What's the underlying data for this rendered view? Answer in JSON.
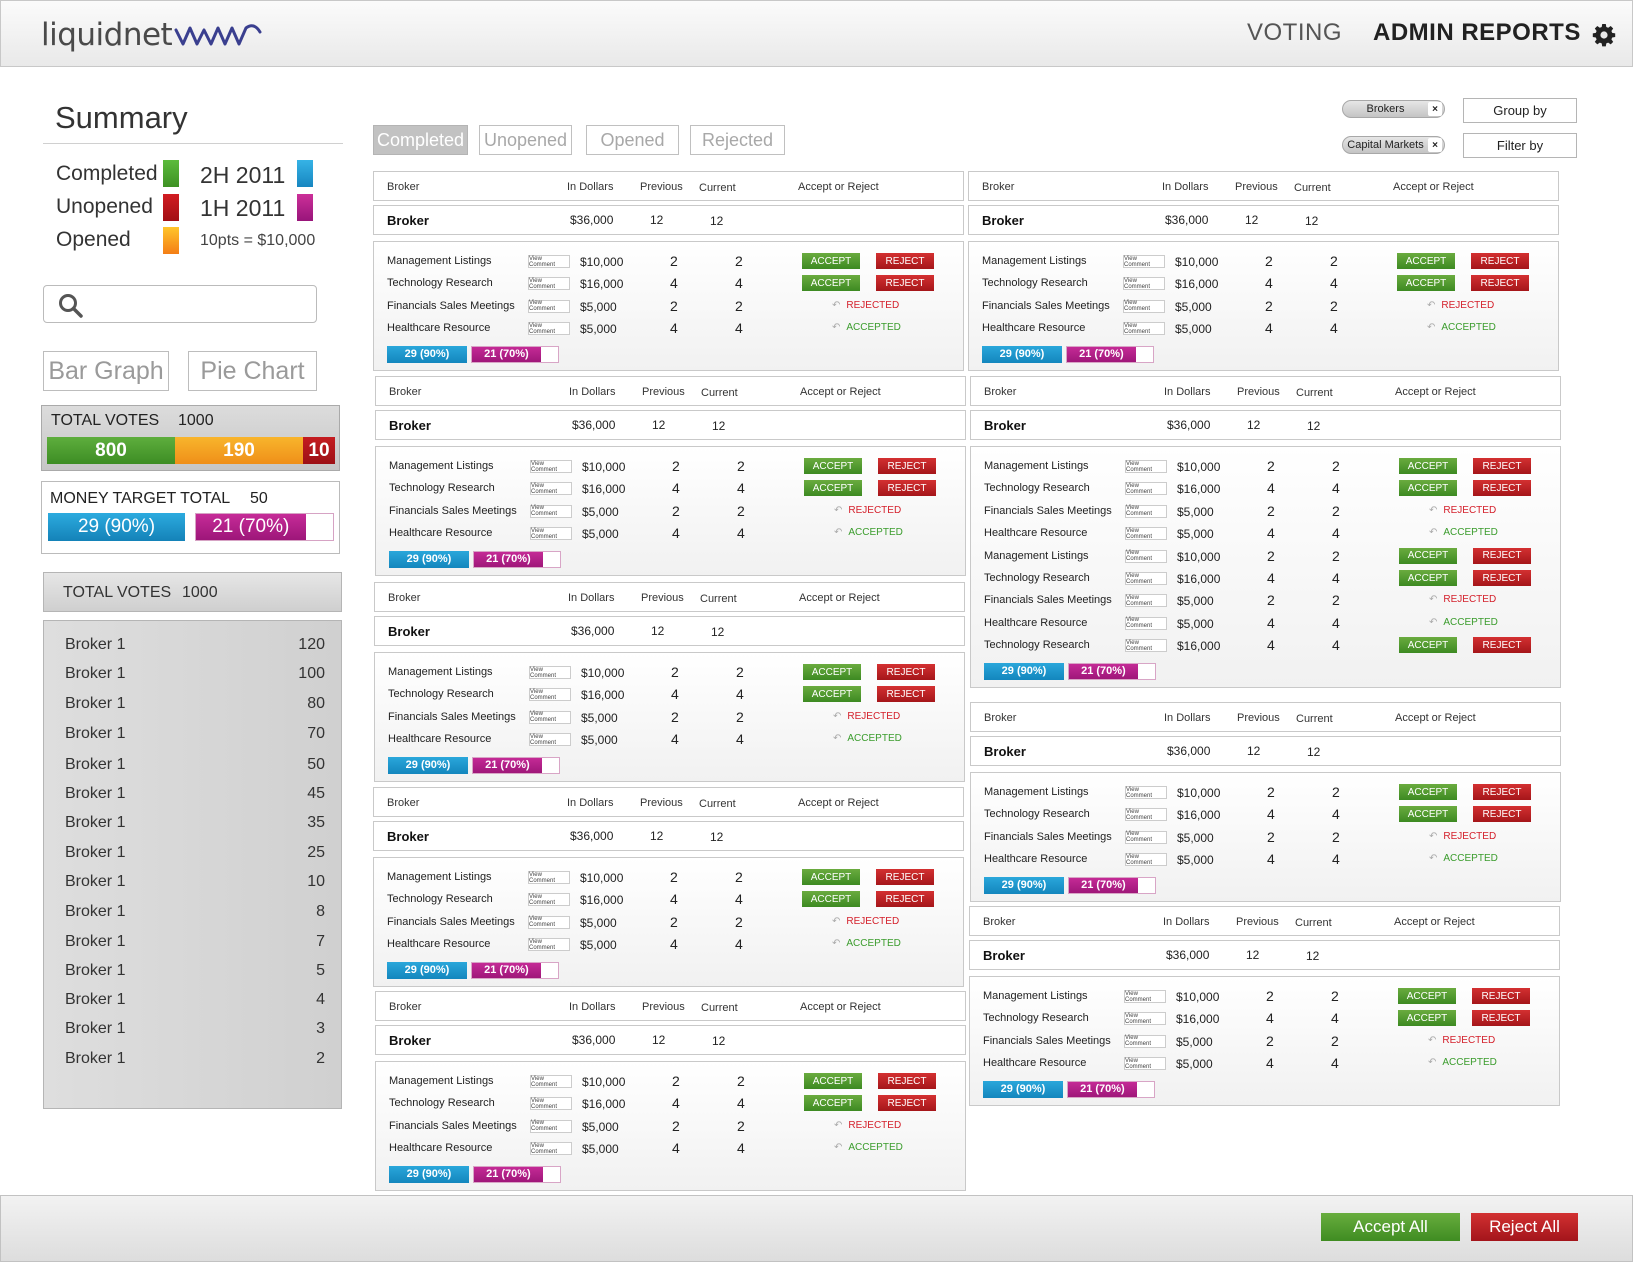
{
  "header": {
    "logo_text": "liquidnet",
    "nav": {
      "voting": "VOTING",
      "admin_reports": "ADMIN REPORTS"
    }
  },
  "summary": {
    "title": "Summary",
    "legend": [
      {
        "label": "Completed",
        "color": "#4caf32"
      },
      {
        "label": "Unopened",
        "color": "#c0161b"
      },
      {
        "label": "Opened",
        "color": "#f5a020"
      }
    ],
    "periods": [
      {
        "label": "2H 2011",
        "color": "#1f9fd8"
      },
      {
        "label": "1H 2011",
        "color": "#b41a86"
      }
    ],
    "points_note": "10pts = $10,000",
    "search": {
      "placeholder": "",
      "value": ""
    },
    "view_buttons": {
      "bar": "Bar Graph",
      "pie": "Pie Chart"
    }
  },
  "total_votes": {
    "label": "TOTAL VOTES",
    "value": "1000",
    "segments": [
      {
        "value": "800",
        "color": "#4a9e33"
      },
      {
        "value": "190",
        "color": "#f4a024"
      },
      {
        "value": "10",
        "color": "#b3151a"
      }
    ]
  },
  "money_target": {
    "label": "MONEY TARGET TOTAL",
    "value": "50",
    "bars": [
      {
        "text": "29 (90%)",
        "color": "#1c93cd"
      },
      {
        "text": "21 (70%)",
        "color": "#b41a86",
        "fill": 0.8
      }
    ]
  },
  "broker_totals": {
    "label": "TOTAL VOTES",
    "value": "1000",
    "rows": [
      {
        "name": "Broker 1",
        "value": "120"
      },
      {
        "name": "Broker 1",
        "value": "100"
      },
      {
        "name": "Broker 1",
        "value": "80"
      },
      {
        "name": "Broker 1",
        "value": "70"
      },
      {
        "name": "Broker 1",
        "value": "50"
      },
      {
        "name": "Broker 1",
        "value": "45"
      },
      {
        "name": "Broker 1",
        "value": "35"
      },
      {
        "name": "Broker 1",
        "value": "25"
      },
      {
        "name": "Broker 1",
        "value": "10"
      },
      {
        "name": "Broker 1",
        "value": "8"
      },
      {
        "name": "Broker 1",
        "value": "7"
      },
      {
        "name": "Broker 1",
        "value": "5"
      },
      {
        "name": "Broker 1",
        "value": "4"
      },
      {
        "name": "Broker 1",
        "value": "3"
      },
      {
        "name": "Broker 1",
        "value": "2"
      }
    ]
  },
  "tabs": [
    {
      "label": "Completed",
      "active": true
    },
    {
      "label": "Unopened",
      "active": false
    },
    {
      "label": "Opened",
      "active": false
    },
    {
      "label": "Rejected",
      "active": false
    }
  ],
  "filters": {
    "chips": [
      "Brokers",
      "Capital Markets"
    ],
    "chip_remove": "×",
    "group_by": "Group by",
    "filter_by": "Filter by"
  },
  "card_labels": {
    "broker": "Broker",
    "in_dollars": "In Dollars",
    "previous": "Previous",
    "current": "Current",
    "accept_or_reject": "Accept or Reject",
    "view_comment": "View Comment",
    "accept": "ACCEPT",
    "reject": "REJECT",
    "rejected": "REJECTED",
    "accepted": "ACCEPTED",
    "undo": "↶",
    "bar1": "29 (90%)",
    "bar2": "21 (70%)"
  },
  "cards": [
    {
      "broker": "Broker",
      "dollars": "$36,000",
      "previous": "12",
      "current": "12",
      "items": [
        {
          "name": "Management Listings",
          "dollars": "$10,000",
          "previous": "2",
          "current": "2",
          "state": "pending"
        },
        {
          "name": "Technology Research",
          "dollars": "$16,000",
          "previous": "4",
          "current": "4",
          "state": "pending"
        },
        {
          "name": "Financials Sales Meetings",
          "dollars": "$5,000",
          "previous": "2",
          "current": "2",
          "state": "rejected"
        },
        {
          "name": "Healthcare Resource",
          "dollars": "$5,000",
          "previous": "4",
          "current": "4",
          "state": "accepted"
        }
      ]
    },
    {
      "broker": "Broker",
      "dollars": "$36,000",
      "previous": "12",
      "current": "12",
      "items": [
        {
          "name": "Management Listings",
          "dollars": "$10,000",
          "previous": "2",
          "current": "2",
          "state": "pending"
        },
        {
          "name": "Technology Research",
          "dollars": "$16,000",
          "previous": "4",
          "current": "4",
          "state": "pending"
        },
        {
          "name": "Financials Sales Meetings",
          "dollars": "$5,000",
          "previous": "2",
          "current": "2",
          "state": "rejected"
        },
        {
          "name": "Healthcare Resource",
          "dollars": "$5,000",
          "previous": "4",
          "current": "4",
          "state": "accepted"
        }
      ]
    },
    {
      "broker": "Broker",
      "dollars": "$36,000",
      "previous": "12",
      "current": "12",
      "items": [
        {
          "name": "Management Listings",
          "dollars": "$10,000",
          "previous": "2",
          "current": "2",
          "state": "pending"
        },
        {
          "name": "Technology Research",
          "dollars": "$16,000",
          "previous": "4",
          "current": "4",
          "state": "pending"
        },
        {
          "name": "Financials Sales Meetings",
          "dollars": "$5,000",
          "previous": "2",
          "current": "2",
          "state": "rejected"
        },
        {
          "name": "Healthcare Resource",
          "dollars": "$5,000",
          "previous": "4",
          "current": "4",
          "state": "accepted"
        }
      ]
    },
    {
      "broker": "Broker",
      "dollars": "$36,000",
      "previous": "12",
      "current": "12",
      "items": [
        {
          "name": "Management Listings",
          "dollars": "$10,000",
          "previous": "2",
          "current": "2",
          "state": "pending"
        },
        {
          "name": "Technology Research",
          "dollars": "$16,000",
          "previous": "4",
          "current": "4",
          "state": "pending"
        },
        {
          "name": "Financials Sales Meetings",
          "dollars": "$5,000",
          "previous": "2",
          "current": "2",
          "state": "rejected"
        },
        {
          "name": "Healthcare Resource",
          "dollars": "$5,000",
          "previous": "4",
          "current": "4",
          "state": "accepted"
        }
      ]
    },
    {
      "broker": "Broker",
      "dollars": "$36,000",
      "previous": "12",
      "current": "12",
      "items": [
        {
          "name": "Management Listings",
          "dollars": "$10,000",
          "previous": "2",
          "current": "2",
          "state": "pending"
        },
        {
          "name": "Technology Research",
          "dollars": "$16,000",
          "previous": "4",
          "current": "4",
          "state": "pending"
        },
        {
          "name": "Financials Sales Meetings",
          "dollars": "$5,000",
          "previous": "2",
          "current": "2",
          "state": "rejected"
        },
        {
          "name": "Healthcare Resource",
          "dollars": "$5,000",
          "previous": "4",
          "current": "4",
          "state": "accepted"
        }
      ]
    },
    {
      "broker": "Broker",
      "dollars": "$36,000",
      "previous": "12",
      "current": "12",
      "items": [
        {
          "name": "Management Listings",
          "dollars": "$10,000",
          "previous": "2",
          "current": "2",
          "state": "pending"
        },
        {
          "name": "Technology Research",
          "dollars": "$16,000",
          "previous": "4",
          "current": "4",
          "state": "pending"
        },
        {
          "name": "Financials Sales Meetings",
          "dollars": "$5,000",
          "previous": "2",
          "current": "2",
          "state": "rejected"
        },
        {
          "name": "Healthcare Resource",
          "dollars": "$5,000",
          "previous": "4",
          "current": "4",
          "state": "accepted"
        }
      ]
    },
    {
      "broker": "Broker",
      "dollars": "$36,000",
      "previous": "12",
      "current": "12",
      "items": [
        {
          "name": "Management Listings",
          "dollars": "$10,000",
          "previous": "2",
          "current": "2",
          "state": "pending"
        },
        {
          "name": "Technology Research",
          "dollars": "$16,000",
          "previous": "4",
          "current": "4",
          "state": "pending"
        },
        {
          "name": "Financials Sales Meetings",
          "dollars": "$5,000",
          "previous": "2",
          "current": "2",
          "state": "rejected"
        },
        {
          "name": "Healthcare Resource",
          "dollars": "$5,000",
          "previous": "4",
          "current": "4",
          "state": "accepted"
        },
        {
          "name": "Management Listings",
          "dollars": "$10,000",
          "previous": "2",
          "current": "2",
          "state": "pending"
        },
        {
          "name": "Technology Research",
          "dollars": "$16,000",
          "previous": "4",
          "current": "4",
          "state": "pending"
        },
        {
          "name": "Financials Sales Meetings",
          "dollars": "$5,000",
          "previous": "2",
          "current": "2",
          "state": "rejected"
        },
        {
          "name": "Healthcare Resource",
          "dollars": "$5,000",
          "previous": "4",
          "current": "4",
          "state": "accepted"
        },
        {
          "name": "Technology Research",
          "dollars": "$16,000",
          "previous": "4",
          "current": "4",
          "state": "pending"
        }
      ]
    },
    {
      "broker": "Broker",
      "dollars": "$36,000",
      "previous": "12",
      "current": "12",
      "items": [
        {
          "name": "Management Listings",
          "dollars": "$10,000",
          "previous": "2",
          "current": "2",
          "state": "pending"
        },
        {
          "name": "Technology Research",
          "dollars": "$16,000",
          "previous": "4",
          "current": "4",
          "state": "pending"
        },
        {
          "name": "Financials Sales Meetings",
          "dollars": "$5,000",
          "previous": "2",
          "current": "2",
          "state": "rejected"
        },
        {
          "name": "Healthcare Resource",
          "dollars": "$5,000",
          "previous": "4",
          "current": "4",
          "state": "accepted"
        }
      ]
    },
    {
      "broker": "Broker",
      "dollars": "$36,000",
      "previous": "12",
      "current": "12",
      "items": [
        {
          "name": "Management Listings",
          "dollars": "$10,000",
          "previous": "2",
          "current": "2",
          "state": "pending"
        },
        {
          "name": "Technology Research",
          "dollars": "$16,000",
          "previous": "4",
          "current": "4",
          "state": "pending"
        },
        {
          "name": "Financials Sales Meetings",
          "dollars": "$5,000",
          "previous": "2",
          "current": "2",
          "state": "rejected"
        },
        {
          "name": "Healthcare Resource",
          "dollars": "$5,000",
          "previous": "4",
          "current": "4",
          "state": "accepted"
        }
      ]
    }
  ],
  "footer": {
    "accept_all": "Accept All",
    "reject_all": "Reject All"
  }
}
